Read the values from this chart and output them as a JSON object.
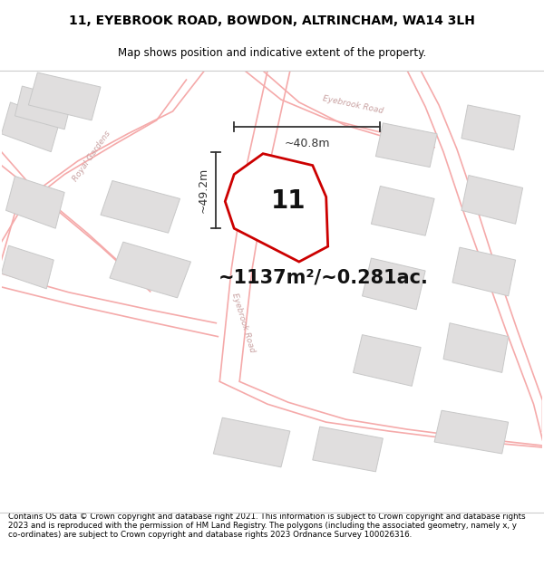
{
  "title_line1": "11, EYEBROOK ROAD, BOWDON, ALTRINCHAM, WA14 3LH",
  "title_line2": "Map shows position and indicative extent of the property.",
  "area_text": "~1137m²/~0.281ac.",
  "property_number": "11",
  "dim_vertical": "~49.2m",
  "dim_horizontal": "~40.8m",
  "footer_text": "Contains OS data © Crown copyright and database right 2021. This information is subject to Crown copyright and database rights 2023 and is reproduced with the permission of HM Land Registry. The polygons (including the associated geometry, namely x, y co-ordinates) are subject to Crown copyright and database rights 2023 Ordnance Survey 100026316.",
  "bg_color": "#ffffff",
  "road_line_color": "#f5aaaa",
  "building_fill": "#e0dede",
  "building_edge": "#c8c8c8",
  "property_fill": "#ffffff",
  "property_edge": "#cc0000",
  "road_label_color": "#c0a0a0",
  "dim_color": "#333333",
  "area_text_color": "#111111",
  "number_color": "#111111"
}
